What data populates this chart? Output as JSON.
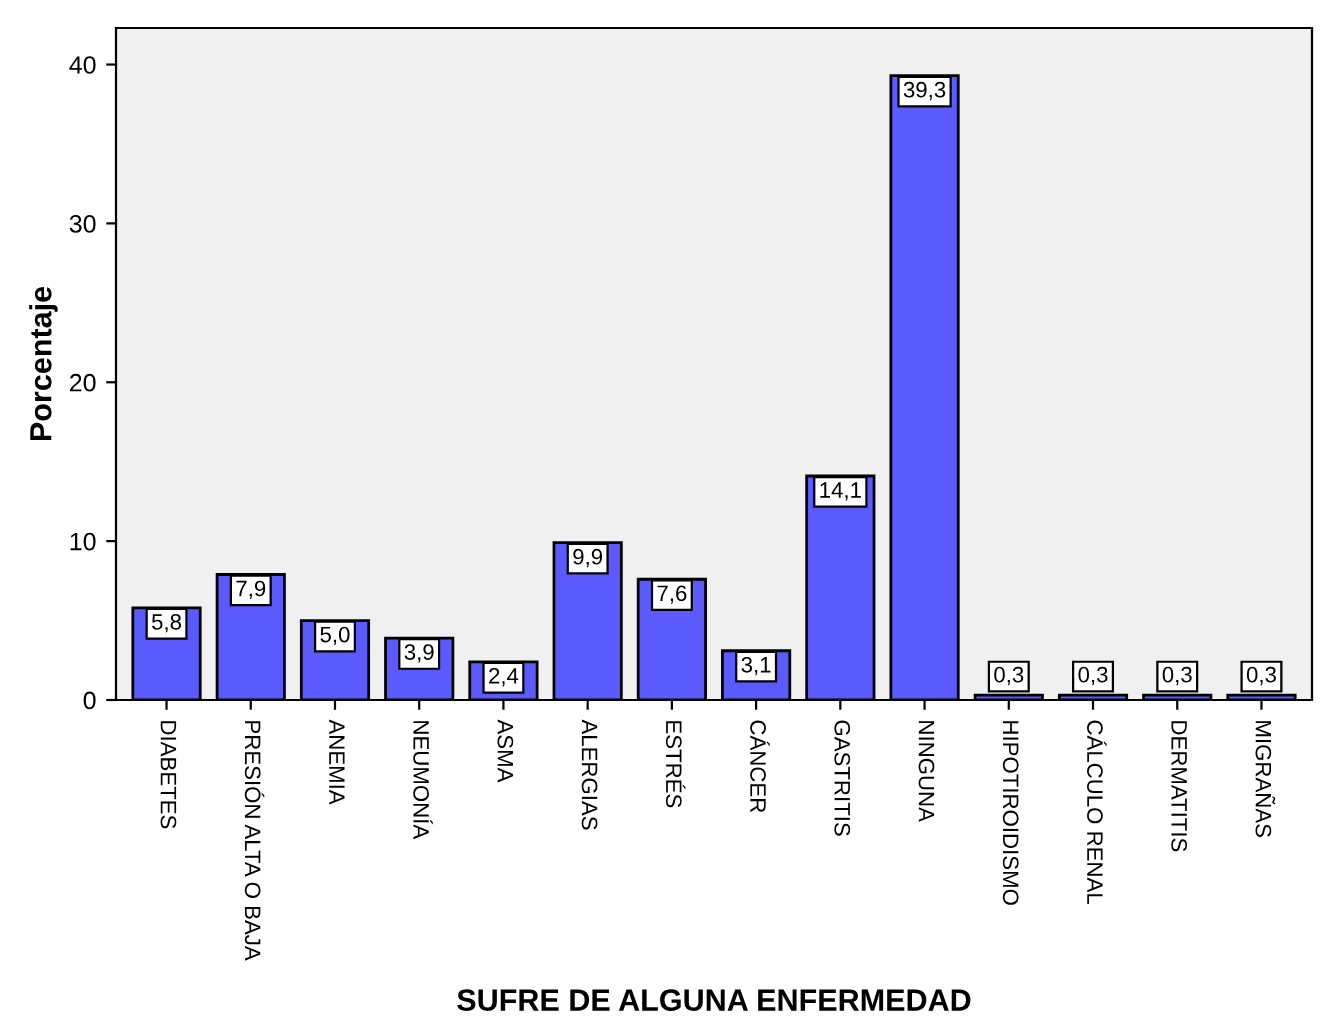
{
  "chart_data": {
    "type": "bar",
    "xlabel": "SUFRE DE ALGUNA ENFERMEDAD",
    "ylabel": "Porcentaje",
    "categories": [
      "DIABETES",
      "PRESIÓN ALTA O BAJA",
      "ANEMIA",
      "NEUMONÍA",
      "ASMA",
      "ALERGIAS",
      "ESTRÉS",
      "CÁNCER",
      "GASTRITIS",
      "NINGUNA",
      "HIPOTIROIDISMO",
      "CÁLCULO RENAL",
      "DERMATITIS",
      "MIGRAÑAS"
    ],
    "values": [
      5.8,
      7.9,
      5.0,
      3.9,
      2.4,
      9.9,
      7.6,
      3.1,
      14.1,
      39.3,
      0.3,
      0.3,
      0.3,
      0.3
    ],
    "value_labels": [
      "5,8",
      "7,9",
      "5,0",
      "3,9",
      "2,4",
      "9,9",
      "7,6",
      "3,1",
      "14,1",
      "39,3",
      "0,3",
      "0,3",
      "0,3",
      "0,3"
    ],
    "color": "#5a5aff",
    "ylim": [
      0,
      42.3
    ],
    "yticks": [
      0,
      10,
      20,
      30,
      40
    ],
    "grid": false,
    "legend": false
  }
}
